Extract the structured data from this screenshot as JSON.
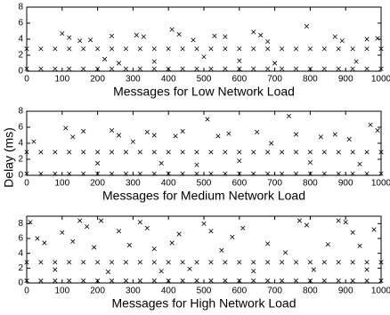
{
  "figure": {
    "ylabel": "Delay (ms)"
  },
  "chart_data": [
    {
      "type": "scatter",
      "xlabel": "Messages for Low Network Load",
      "marker": "x",
      "color": "#000000",
      "xlim": [
        0,
        1000
      ],
      "ylim": [
        0,
        8
      ],
      "xticks": [
        0,
        100,
        200,
        300,
        400,
        500,
        600,
        700,
        800,
        900,
        1000
      ],
      "yticks": [
        0,
        2,
        4,
        6,
        8
      ],
      "x": [
        0,
        40,
        80,
        120,
        160,
        200,
        240,
        280,
        320,
        360,
        400,
        440,
        480,
        520,
        560,
        600,
        640,
        680,
        720,
        760,
        800,
        840,
        880,
        920,
        960,
        1000,
        0,
        40,
        80,
        120,
        160,
        200,
        240,
        280,
        320,
        360,
        400,
        440,
        480,
        520,
        560,
        600,
        640,
        680,
        720,
        760,
        800,
        840,
        880,
        920,
        960,
        1000,
        100,
        120,
        150,
        180,
        220,
        240,
        260,
        310,
        330,
        360,
        410,
        430,
        470,
        500,
        530,
        560,
        600,
        640,
        660,
        680,
        700,
        790,
        870,
        890,
        930,
        960,
        990
      ],
      "y": [
        2.8,
        2.8,
        2.8,
        2.8,
        2.8,
        2.8,
        2.8,
        2.8,
        2.8,
        2.8,
        2.8,
        2.8,
        2.8,
        2.8,
        2.8,
        2.8,
        2.8,
        2.8,
        2.8,
        2.8,
        2.8,
        2.8,
        2.8,
        2.8,
        2.8,
        2.8,
        0.3,
        0.3,
        0.3,
        0.3,
        0.3,
        0.3,
        0.3,
        0.3,
        0.3,
        0.3,
        0.3,
        0.3,
        0.3,
        0.3,
        0.3,
        0.3,
        0.3,
        0.3,
        0.3,
        0.3,
        0.3,
        0.3,
        0.3,
        0.3,
        0.3,
        0.3,
        4.7,
        4.2,
        3.8,
        3.9,
        1.5,
        4.4,
        1.0,
        4.5,
        4.3,
        1.2,
        5.2,
        4.6,
        3.9,
        1.8,
        4.4,
        4.3,
        1.3,
        4.9,
        4.5,
        3.7,
        1.0,
        5.6,
        4.3,
        3.8,
        1.2,
        4.0,
        4.1
      ]
    },
    {
      "type": "scatter",
      "xlabel": "Messages for Medium Network Load",
      "marker": "x",
      "color": "#000000",
      "xlim": [
        0,
        1000
      ],
      "ylim": [
        0,
        8
      ],
      "xticks": [
        0,
        100,
        200,
        300,
        400,
        500,
        600,
        700,
        800,
        900,
        1000
      ],
      "yticks": [
        0,
        2,
        4,
        6,
        8
      ],
      "x": [
        0,
        40,
        80,
        120,
        160,
        200,
        240,
        280,
        320,
        360,
        400,
        440,
        480,
        520,
        560,
        600,
        640,
        680,
        720,
        760,
        800,
        840,
        880,
        920,
        960,
        1000,
        0,
        40,
        80,
        120,
        160,
        200,
        240,
        280,
        320,
        360,
        400,
        440,
        480,
        520,
        560,
        600,
        640,
        680,
        720,
        760,
        800,
        840,
        880,
        920,
        960,
        1000,
        20,
        110,
        130,
        160,
        200,
        240,
        260,
        300,
        340,
        360,
        380,
        420,
        440,
        480,
        510,
        540,
        570,
        600,
        650,
        690,
        740,
        760,
        800,
        830,
        870,
        910,
        940,
        970,
        990
      ],
      "y": [
        2.9,
        2.9,
        2.9,
        2.9,
        2.9,
        2.9,
        2.9,
        2.9,
        2.9,
        2.9,
        2.9,
        2.9,
        2.9,
        2.9,
        2.9,
        2.9,
        2.9,
        2.9,
        2.9,
        2.9,
        2.9,
        2.9,
        2.9,
        2.9,
        2.9,
        2.9,
        0.2,
        0.2,
        0.2,
        0.2,
        0.2,
        0.2,
        0.2,
        0.2,
        0.2,
        0.2,
        0.2,
        0.2,
        0.2,
        0.2,
        0.2,
        0.2,
        0.2,
        0.2,
        0.2,
        0.2,
        0.2,
        0.2,
        0.2,
        0.2,
        0.2,
        0.2,
        4.2,
        5.9,
        4.8,
        5.5,
        1.5,
        5.6,
        5.0,
        4.2,
        5.4,
        5.0,
        1.5,
        4.9,
        5.5,
        1.3,
        7.0,
        4.9,
        5.2,
        1.8,
        5.4,
        4.0,
        7.4,
        5.1,
        1.6,
        4.8,
        5.1,
        4.5,
        1.4,
        6.3,
        5.6
      ]
    },
    {
      "type": "scatter",
      "xlabel": "Messages for High Network Load",
      "marker": "x",
      "color": "#000000",
      "xlim": [
        0,
        1000
      ],
      "ylim": [
        0,
        9
      ],
      "xticks": [
        0,
        100,
        200,
        300,
        400,
        500,
        600,
        700,
        800,
        900,
        1000
      ],
      "yticks": [
        0,
        2,
        4,
        6,
        8
      ],
      "x": [
        0,
        40,
        80,
        120,
        160,
        200,
        240,
        280,
        320,
        360,
        400,
        440,
        480,
        520,
        560,
        600,
        640,
        680,
        720,
        760,
        800,
        840,
        880,
        920,
        960,
        1000,
        0,
        40,
        80,
        120,
        160,
        200,
        240,
        280,
        320,
        360,
        400,
        440,
        480,
        520,
        560,
        600,
        640,
        680,
        720,
        760,
        800,
        840,
        880,
        920,
        960,
        1000,
        10,
        30,
        50,
        80,
        100,
        130,
        150,
        170,
        190,
        210,
        230,
        260,
        290,
        320,
        340,
        360,
        380,
        410,
        430,
        460,
        500,
        520,
        550,
        580,
        610,
        640,
        680,
        730,
        770,
        790,
        810,
        850,
        880,
        900,
        920,
        940,
        960,
        980
      ],
      "y": [
        2.8,
        2.8,
        2.8,
        2.8,
        2.8,
        2.8,
        2.8,
        2.8,
        2.8,
        2.8,
        2.8,
        2.8,
        2.8,
        2.8,
        2.8,
        2.8,
        2.8,
        2.8,
        2.8,
        2.8,
        2.8,
        2.8,
        2.8,
        2.8,
        2.8,
        2.8,
        0.3,
        0.3,
        0.3,
        0.3,
        0.3,
        0.3,
        0.3,
        0.3,
        0.3,
        0.3,
        0.3,
        0.3,
        0.3,
        0.3,
        0.3,
        0.3,
        0.3,
        0.3,
        0.3,
        0.3,
        0.3,
        0.3,
        0.3,
        0.3,
        0.3,
        0.3,
        8.2,
        6.0,
        5.4,
        1.8,
        6.8,
        5.6,
        8.4,
        7.6,
        4.8,
        8.4,
        1.5,
        7.0,
        5.1,
        8.2,
        7.4,
        4.6,
        1.6,
        5.4,
        6.6,
        1.9,
        8.0,
        7.0,
        4.4,
        6.2,
        7.4,
        1.6,
        5.3,
        4.1,
        8.4,
        7.8,
        1.8,
        5.2,
        8.4,
        8.2,
        6.8,
        5.0,
        1.8,
        7.2
      ]
    }
  ]
}
